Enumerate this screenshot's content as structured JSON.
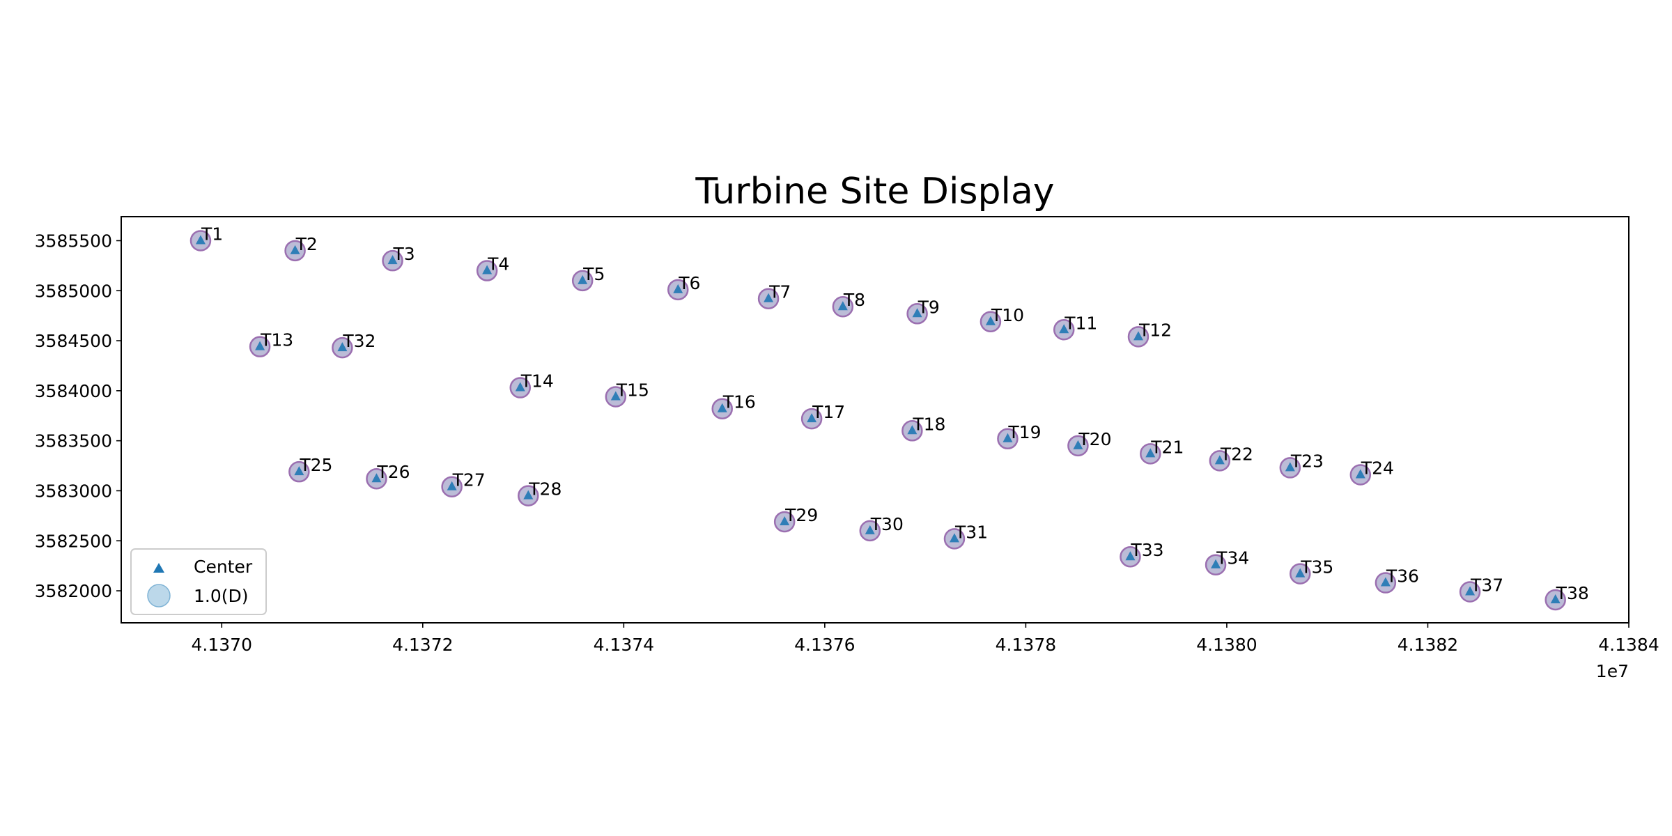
{
  "chart_data": {
    "type": "scatter",
    "title": "Turbine Site Display",
    "xlabel": "",
    "ylabel": "",
    "x_offset_label": "1e7",
    "x_tick_labels": [
      "4.1370",
      "4.1372",
      "4.1374",
      "4.1376",
      "4.1378",
      "4.1380",
      "4.1382",
      "4.1384"
    ],
    "x_ticks": [
      41370000,
      41372000,
      41374000,
      41376000,
      41378000,
      41380000,
      41382000,
      41384000
    ],
    "y_ticks": [
      3582000,
      3582500,
      3583000,
      3583500,
      3584000,
      3584500,
      3585000,
      3585500
    ],
    "xlim": [
      41369000,
      41384000
    ],
    "ylim": [
      3581680,
      3585740
    ],
    "grid": false,
    "legend": {
      "placement": "lower-left",
      "entries": [
        {
          "label": "Center",
          "marker": "triangle",
          "color": "#1f77b4"
        },
        {
          "label": "1.0(D)",
          "marker": "circle",
          "color": "#a6cbe3"
        }
      ]
    },
    "colors": {
      "center_marker": "#1f77b4",
      "circle_fill": "#b0b0d0",
      "circle_edge": "#9b6fb0"
    },
    "points": [
      {
        "label": "T1",
        "x": 41369790,
        "y": 3585500
      },
      {
        "label": "T2",
        "x": 41370730,
        "y": 3585400
      },
      {
        "label": "T3",
        "x": 41371700,
        "y": 3585300
      },
      {
        "label": "T4",
        "x": 41372640,
        "y": 3585200
      },
      {
        "label": "T5",
        "x": 41373590,
        "y": 3585100
      },
      {
        "label": "T6",
        "x": 41374540,
        "y": 3585010
      },
      {
        "label": "T7",
        "x": 41375440,
        "y": 3584920
      },
      {
        "label": "T8",
        "x": 41376180,
        "y": 3584840
      },
      {
        "label": "T9",
        "x": 41376920,
        "y": 3584770
      },
      {
        "label": "T10",
        "x": 41377650,
        "y": 3584690
      },
      {
        "label": "T11",
        "x": 41378380,
        "y": 3584610
      },
      {
        "label": "T12",
        "x": 41379120,
        "y": 3584540
      },
      {
        "label": "T13",
        "x": 41370380,
        "y": 3584440
      },
      {
        "label": "T32",
        "x": 41371200,
        "y": 3584430
      },
      {
        "label": "T14",
        "x": 41372970,
        "y": 3584030
      },
      {
        "label": "T15",
        "x": 41373920,
        "y": 3583940
      },
      {
        "label": "T16",
        "x": 41374980,
        "y": 3583820
      },
      {
        "label": "T17",
        "x": 41375870,
        "y": 3583720
      },
      {
        "label": "T18",
        "x": 41376870,
        "y": 3583600
      },
      {
        "label": "T19",
        "x": 41377820,
        "y": 3583520
      },
      {
        "label": "T20",
        "x": 41378520,
        "y": 3583450
      },
      {
        "label": "T21",
        "x": 41379240,
        "y": 3583370
      },
      {
        "label": "T22",
        "x": 41379930,
        "y": 3583300
      },
      {
        "label": "T23",
        "x": 41380630,
        "y": 3583230
      },
      {
        "label": "T24",
        "x": 41381330,
        "y": 3583160
      },
      {
        "label": "T25",
        "x": 41370770,
        "y": 3583190
      },
      {
        "label": "T26",
        "x": 41371540,
        "y": 3583120
      },
      {
        "label": "T27",
        "x": 41372290,
        "y": 3583040
      },
      {
        "label": "T28",
        "x": 41373050,
        "y": 3582950
      },
      {
        "label": "T29",
        "x": 41375600,
        "y": 3582690
      },
      {
        "label": "T30",
        "x": 41376450,
        "y": 3582600
      },
      {
        "label": "T31",
        "x": 41377290,
        "y": 3582520
      },
      {
        "label": "T33",
        "x": 41379040,
        "y": 3582340
      },
      {
        "label": "T34",
        "x": 41379890,
        "y": 3582260
      },
      {
        "label": "T35",
        "x": 41380730,
        "y": 3582170
      },
      {
        "label": "T36",
        "x": 41381580,
        "y": 3582080
      },
      {
        "label": "T37",
        "x": 41382420,
        "y": 3581990
      },
      {
        "label": "T38",
        "x": 41383270,
        "y": 3581910
      }
    ]
  }
}
